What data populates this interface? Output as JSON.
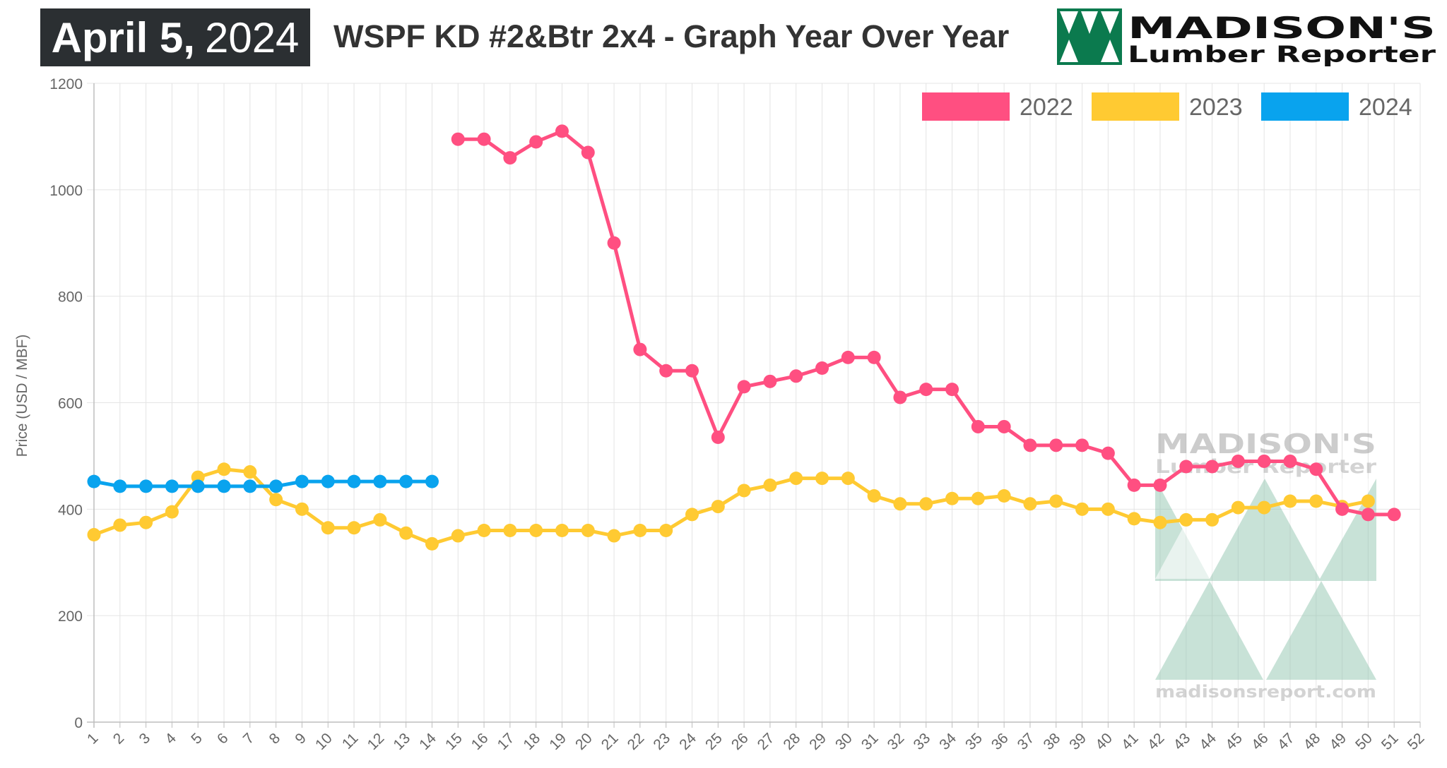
{
  "header": {
    "date_month_day": "April 5,",
    "date_year": "2024",
    "title": "WSPF KD #2&Btr 2x4 - Graph Year Over Year",
    "logo_line1": "MADISON'S",
    "logo_line2": "Lumber Reporter"
  },
  "watermark": {
    "line1": "MADISON'S",
    "line2": "Lumber Reporter",
    "url": "madisonsreport.com"
  },
  "colors": {
    "2022": "#ff4f81",
    "2023": "#ffca32",
    "2024": "#09a3ee",
    "logo_green": "#0b7a4e",
    "header_bg": "#2b2f32"
  },
  "chart_data": {
    "type": "line",
    "title": "WSPF KD #2&Btr 2x4 - Graph Year Over Year",
    "xlabel": "",
    "ylabel": "Price (USD / MBF)",
    "ylim": [
      0,
      1200
    ],
    "yticks": [
      0,
      200,
      400,
      600,
      800,
      1000,
      1200
    ],
    "x": [
      1,
      2,
      3,
      4,
      5,
      6,
      7,
      8,
      9,
      10,
      11,
      12,
      13,
      14,
      15,
      16,
      17,
      18,
      19,
      20,
      21,
      22,
      23,
      24,
      25,
      26,
      27,
      28,
      29,
      30,
      31,
      32,
      33,
      34,
      35,
      36,
      37,
      38,
      39,
      40,
      41,
      42,
      43,
      44,
      45,
      46,
      47,
      48,
      49,
      50,
      51,
      52
    ],
    "grid": true,
    "legend_position": "top-right",
    "series": [
      {
        "name": "2022",
        "x": [
          15,
          16,
          17,
          18,
          19,
          20,
          21,
          22,
          23,
          24,
          25,
          26,
          27,
          28,
          29,
          30,
          31,
          32,
          33,
          34,
          35,
          36,
          37,
          38,
          39,
          40,
          41,
          42,
          43,
          44,
          45,
          46,
          47,
          48,
          49,
          50,
          51
        ],
        "values": [
          1095,
          1095,
          1060,
          1090,
          1110,
          1070,
          900,
          700,
          660,
          660,
          535,
          630,
          640,
          650,
          665,
          685,
          685,
          610,
          625,
          625,
          555,
          555,
          520,
          520,
          520,
          505,
          445,
          445,
          480,
          480,
          490,
          490,
          490,
          475,
          400,
          390,
          390
        ]
      },
      {
        "name": "2023",
        "x": [
          1,
          2,
          3,
          4,
          5,
          6,
          7,
          8,
          9,
          10,
          11,
          12,
          13,
          14,
          15,
          16,
          17,
          18,
          19,
          20,
          21,
          22,
          23,
          24,
          25,
          26,
          27,
          28,
          29,
          30,
          31,
          32,
          33,
          34,
          35,
          36,
          37,
          38,
          39,
          40,
          41,
          42,
          43,
          44,
          45,
          46,
          47,
          48,
          49,
          50
        ],
        "values": [
          352,
          370,
          375,
          395,
          460,
          475,
          470,
          418,
          400,
          365,
          365,
          380,
          355,
          335,
          350,
          360,
          360,
          360,
          360,
          360,
          350,
          360,
          360,
          390,
          405,
          435,
          445,
          458,
          458,
          458,
          425,
          410,
          410,
          420,
          420,
          425,
          410,
          415,
          400,
          400,
          382,
          375,
          380,
          380,
          403,
          403,
          415,
          415,
          405,
          415
        ]
      },
      {
        "name": "2024",
        "x": [
          1,
          2,
          3,
          4,
          5,
          6,
          7,
          8,
          9,
          10,
          11,
          12,
          13,
          14
        ],
        "values": [
          452,
          443,
          443,
          443,
          443,
          443,
          443,
          443,
          452,
          452,
          452,
          452,
          452,
          452
        ]
      }
    ]
  }
}
